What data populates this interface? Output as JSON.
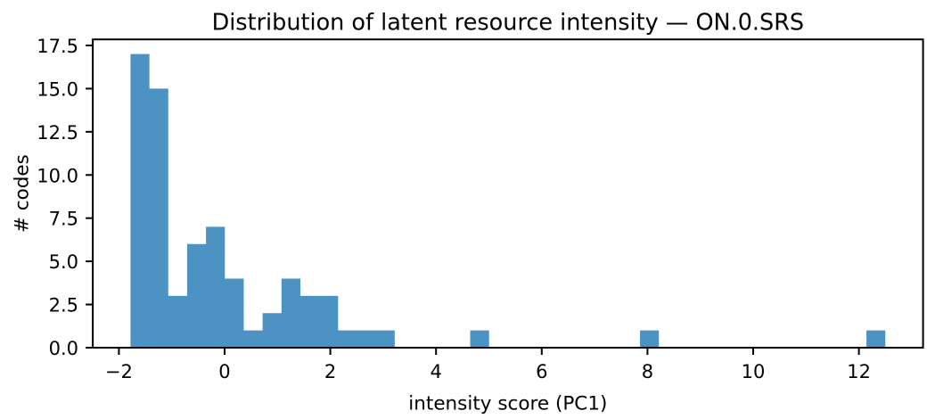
{
  "chart_data": {
    "type": "histogram",
    "title": "Distribution of latent resource intensity — ON.0.SRS",
    "xlabel": "intensity score (PC1)",
    "ylabel": "# codes",
    "bar_color": "#4c92c3",
    "axis_color": "#000000",
    "bin_start": -1.78,
    "bin_width": 0.357,
    "counts": [
      17,
      15,
      3,
      6,
      7,
      4,
      1,
      2,
      4,
      3,
      3,
      1,
      1,
      1,
      0,
      0,
      0,
      0,
      1,
      0,
      0,
      0,
      0,
      0,
      0,
      0,
      0,
      1,
      0,
      0,
      0,
      0,
      0,
      0,
      0,
      0,
      0,
      0,
      0,
      1
    ],
    "xticks": [
      -2,
      0,
      2,
      4,
      6,
      8,
      10,
      12
    ],
    "yticks": [
      0,
      2.5,
      5,
      7.5,
      10,
      12.5,
      15,
      17.5
    ],
    "xlim": [
      -2.494,
      13.214
    ],
    "ylim": [
      0,
      17.85
    ],
    "grid": false,
    "legend": null
  }
}
